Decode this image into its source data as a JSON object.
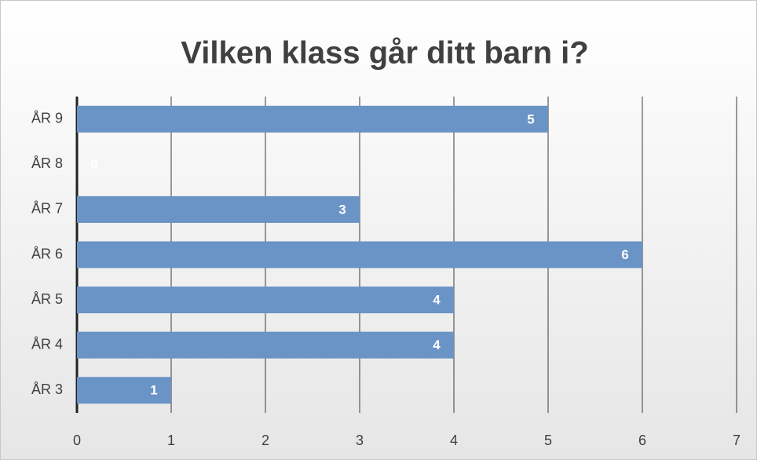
{
  "chart_data": {
    "type": "bar",
    "orientation": "horizontal",
    "title": "Vilken klass går ditt barn i?",
    "categories": [
      "ÅR 9",
      "ÅR 8",
      "ÅR 7",
      "ÅR 6",
      "ÅR 5",
      "ÅR 4",
      "ÅR 3"
    ],
    "values": [
      5,
      0,
      3,
      6,
      4,
      4,
      1
    ],
    "color": "#6a93c6",
    "xlim": [
      0,
      7
    ],
    "xticks": [
      0,
      1,
      2,
      3,
      4,
      5,
      6,
      7
    ],
    "grid": true
  }
}
